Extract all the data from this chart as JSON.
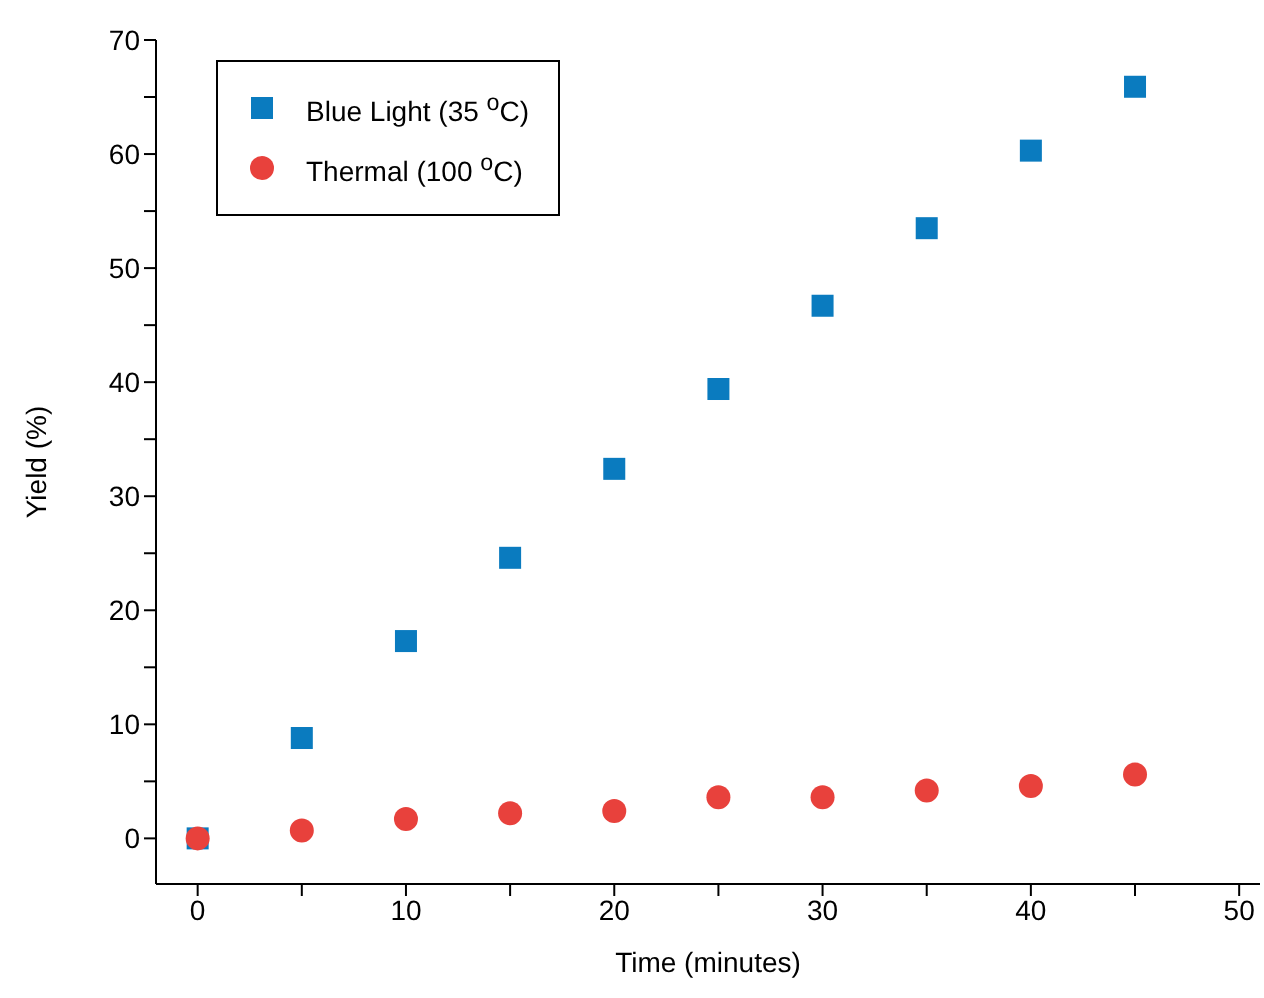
{
  "chart_data": {
    "type": "scatter",
    "xlabel": "Time (minutes)",
    "ylabel": "Yield (%)",
    "x": [
      0,
      5,
      10,
      15,
      20,
      25,
      30,
      35,
      40,
      45
    ],
    "series": [
      {
        "name": "Blue Light (35 $^{o}$C)",
        "color": "#0a7bbf",
        "marker": "square",
        "values": [
          0,
          8.8,
          17.3,
          24.6,
          32.4,
          39.4,
          46.7,
          53.5,
          60.3,
          65.9
        ]
      },
      {
        "name": "Thermal (100 $^{o}$C)",
        "color": "#e8413c",
        "marker": "circle",
        "values": [
          0,
          0.7,
          1.7,
          2.2,
          2.4,
          3.6,
          3.6,
          4.2,
          4.6,
          5.6
        ]
      }
    ],
    "xlim": [
      -2,
      51
    ],
    "xticks": [
      0,
      {
        "value": 5,
        "label": null
      },
      10,
      {
        "value": 15,
        "label": null
      },
      20,
      {
        "value": 25,
        "label": null
      },
      30,
      {
        "value": 35,
        "label": null
      },
      40,
      {
        "value": 45,
        "label": null
      },
      50
    ],
    "ylim": [
      -4,
      70
    ],
    "yticks": [
      0,
      {
        "value": 5,
        "label": null
      },
      10,
      {
        "value": 15,
        "label": null
      },
      20,
      {
        "value": 25,
        "label": null
      },
      30,
      {
        "value": 35,
        "label": null
      },
      40,
      {
        "value": 45,
        "label": null
      },
      50,
      {
        "value": 55,
        "label": null
      },
      60,
      {
        "value": 65,
        "label": null
      },
      70
    ],
    "grid": false,
    "legend": "top left"
  }
}
